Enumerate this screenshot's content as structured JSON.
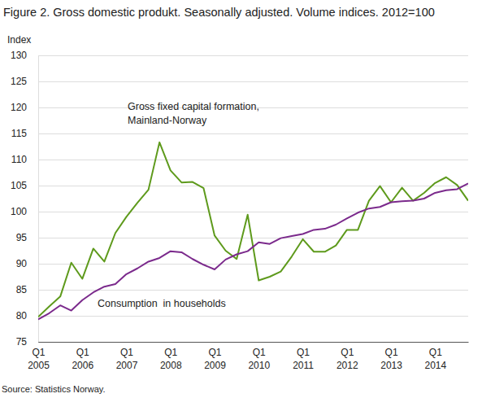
{
  "chart_data": {
    "type": "line",
    "title": "Figure 2. Gross domestic produkt. Seasonally adjusted. Volume indices. 2012=100",
    "y_label": "Index",
    "source": "Source: Statistics Norway.",
    "categories": [
      "Q1 2005",
      null,
      null,
      null,
      "Q1 2006",
      null,
      null,
      null,
      "Q1 2007",
      null,
      null,
      null,
      "Q1 2008",
      null,
      null,
      null,
      "Q1 2009",
      null,
      null,
      null,
      "Q1 2010",
      null,
      null,
      null,
      "Q1 2011",
      null,
      null,
      null,
      "Q1 2012",
      null,
      null,
      null,
      "Q1 2013",
      null,
      null,
      null,
      "Q1 2014",
      null,
      null,
      null
    ],
    "series": [
      {
        "name": "Gross fixed capital formation, Mainland-Norway",
        "color": "#5e9a1c",
        "values": [
          79.8,
          81.8,
          83.7,
          90.2,
          87.1,
          92.9,
          90.4,
          95.9,
          99.0,
          101.7,
          104.2,
          113.3,
          107.9,
          105.6,
          105.7,
          104.5,
          95.4,
          92.5,
          90.9,
          99.4,
          86.8,
          87.5,
          88.5,
          91.4,
          94.7,
          92.3,
          92.3,
          93.5,
          96.5,
          96.5,
          102.1,
          104.9,
          101.8,
          104.6,
          102.1,
          103.6,
          105.5,
          106.6,
          105.1,
          102.1
        ]
      },
      {
        "name": "Consumption in households",
        "color": "#7b2a8c",
        "values": [
          79.3,
          80.5,
          82.0,
          81.0,
          83.0,
          84.5,
          85.6,
          86.1,
          88.0,
          89.1,
          90.4,
          91.1,
          92.4,
          92.2,
          90.9,
          89.8,
          88.9,
          90.8,
          91.8,
          92.4,
          94.1,
          93.8,
          94.9,
          95.3,
          95.7,
          96.5,
          96.7,
          97.5,
          98.7,
          99.8,
          100.6,
          100.9,
          101.8,
          102.0,
          102.1,
          102.5,
          103.6,
          104.1,
          104.3,
          105.4
        ]
      }
    ],
    "annotations": [
      {
        "text": [
          "Gross fixed capital formation,",
          "Mainland-Norway"
        ]
      },
      {
        "text": [
          "Consumption  in households"
        ]
      }
    ],
    "ylim": [
      75,
      130
    ],
    "yticks": [
      75,
      80,
      85,
      90,
      95,
      100,
      105,
      110,
      115,
      120,
      125,
      130
    ],
    "grid": true
  }
}
